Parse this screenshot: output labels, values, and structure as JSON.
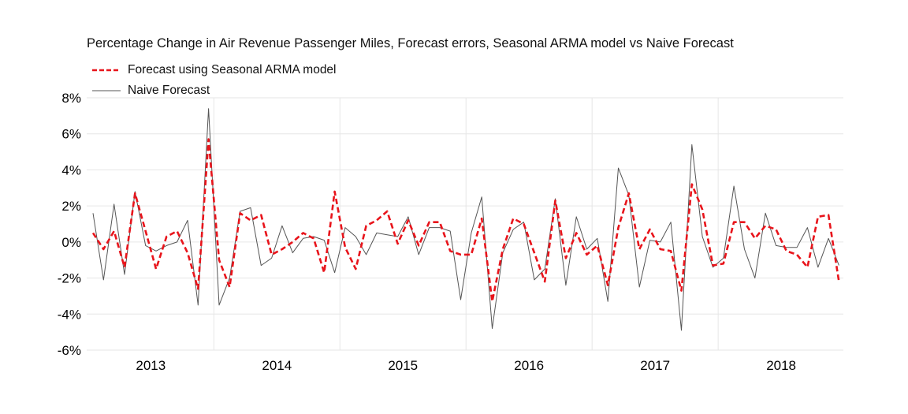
{
  "chart_data": {
    "type": "line",
    "title": "Percentage Change in Air Revenue Passenger Miles, Forecast errors, Seasonal ARMA model vs Naive Forecast",
    "xlabel": "",
    "ylabel": "",
    "y_ticks": [
      "8%",
      "6%",
      "4%",
      "2%",
      "0%",
      "-2%",
      "-4%",
      "-6%"
    ],
    "ylim": [
      -6,
      8
    ],
    "x_categories": [
      "2013",
      "2014",
      "2015",
      "2016",
      "2017",
      "2018"
    ],
    "grid": true,
    "legend_position": "top-left",
    "x": [
      "2013-01",
      "2013-02",
      "2013-03",
      "2013-04",
      "2013-05",
      "2013-06",
      "2013-07",
      "2013-08",
      "2013-09",
      "2013-10",
      "2013-11",
      "2013-12",
      "2014-01",
      "2014-02",
      "2014-03",
      "2014-04",
      "2014-05",
      "2014-06",
      "2014-07",
      "2014-08",
      "2014-09",
      "2014-10",
      "2014-11",
      "2014-12",
      "2015-01",
      "2015-02",
      "2015-03",
      "2015-04",
      "2015-05",
      "2015-06",
      "2015-07",
      "2015-08",
      "2015-09",
      "2015-10",
      "2015-11",
      "2015-12",
      "2016-01",
      "2016-02",
      "2016-03",
      "2016-04",
      "2016-05",
      "2016-06",
      "2016-07",
      "2016-08",
      "2016-09",
      "2016-10",
      "2016-11",
      "2016-12",
      "2017-01",
      "2017-02",
      "2017-03",
      "2017-04",
      "2017-05",
      "2017-06",
      "2017-07",
      "2017-08",
      "2017-09",
      "2017-10",
      "2017-11",
      "2017-12",
      "2018-01",
      "2018-02",
      "2018-03",
      "2018-04",
      "2018-05",
      "2018-06",
      "2018-07",
      "2018-08",
      "2018-09",
      "2018-10",
      "2018-11",
      "2018-12"
    ],
    "series": [
      {
        "name": "Forecast using Seasonal ARMA model",
        "color": "#e8141b",
        "style": "dashed",
        "values": [
          0.5,
          -0.4,
          0.6,
          -1.4,
          2.7,
          0.6,
          -1.5,
          0.3,
          0.6,
          -0.6,
          -2.6,
          5.7,
          -1.0,
          -2.5,
          1.6,
          1.2,
          1.5,
          -0.7,
          -0.4,
          0.0,
          0.5,
          0.2,
          -1.7,
          2.8,
          -0.3,
          -1.5,
          0.9,
          1.2,
          1.7,
          -0.1,
          1.2,
          -0.2,
          1.1,
          1.1,
          -0.5,
          -0.7,
          -0.7,
          1.3,
          -3.3,
          -0.4,
          1.3,
          1.0,
          -0.6,
          -2.2,
          2.3,
          -0.9,
          0.5,
          -0.7,
          -0.2,
          -2.4,
          0.8,
          2.7,
          -0.4,
          0.7,
          -0.4,
          -0.5,
          -2.7,
          3.2,
          1.8,
          -1.3,
          -1.2,
          1.1,
          1.1,
          0.2,
          0.9,
          0.7,
          -0.5,
          -0.7,
          -1.4,
          1.4,
          1.5,
          -2.2
        ]
      },
      {
        "name": "Naive Forecast",
        "color": "#555555",
        "style": "solid",
        "values": [
          1.6,
          -2.1,
          2.1,
          -1.8,
          2.8,
          -0.2,
          -0.5,
          -0.2,
          0.0,
          1.2,
          -3.5,
          7.4,
          -3.5,
          -2.0,
          1.7,
          1.9,
          -1.3,
          -0.9,
          0.9,
          -0.6,
          0.2,
          0.3,
          0.1,
          -1.7,
          0.8,
          0.3,
          -0.7,
          0.5,
          0.4,
          0.3,
          1.4,
          -0.7,
          0.8,
          0.8,
          0.6,
          -3.2,
          0.5,
          2.5,
          -4.8,
          -0.6,
          0.7,
          1.1,
          -2.1,
          -1.5,
          2.4,
          -2.4,
          1.4,
          -0.4,
          0.2,
          -3.3,
          4.1,
          2.6,
          -2.5,
          0.1,
          0.0,
          1.1,
          -4.9,
          5.4,
          0.3,
          -1.4,
          -0.9,
          3.1,
          -0.4,
          -2.0,
          1.6,
          -0.2,
          -0.3,
          -0.3,
          0.8,
          -1.4,
          0.2,
          -1.3
        ]
      }
    ]
  }
}
